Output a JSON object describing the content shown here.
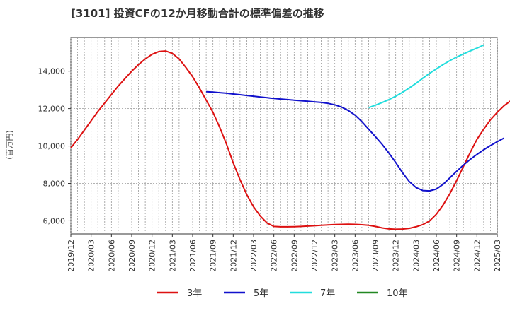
{
  "chart_data": {
    "type": "line",
    "title": "[3101]  投資CFの12か月移動合計の標準偏差の推移",
    "ylabel": "(百万円)",
    "xlabel": "",
    "ylim": [
      5300,
      15800
    ],
    "yticks": [
      6000,
      8000,
      10000,
      12000,
      14000
    ],
    "ytick_labels": [
      "6,000",
      "8,000",
      "10,000",
      "12,000",
      "14,000"
    ],
    "x_start": "2019/12",
    "x_end": "2025/03",
    "xtick_labels": [
      "2019/12",
      "2020/03",
      "2020/06",
      "2020/09",
      "2020/12",
      "2021/03",
      "2021/06",
      "2021/09",
      "2021/12",
      "2022/03",
      "2022/06",
      "2022/09",
      "2022/12",
      "2023/03",
      "2023/06",
      "2023/09",
      "2023/12",
      "2024/03",
      "2024/06",
      "2024/09",
      "2024/12",
      "2025/03"
    ],
    "grid": true,
    "legend_position": "bottom",
    "series": [
      {
        "name": "3年",
        "color": "#dd1111",
        "start": "2019/12",
        "values": [
          9900,
          10350,
          10850,
          11350,
          11850,
          12300,
          12750,
          13200,
          13600,
          14000,
          14350,
          14650,
          14900,
          15050,
          15080,
          14950,
          14650,
          14200,
          13700,
          13100,
          12450,
          11800,
          11000,
          10100,
          9100,
          8200,
          7400,
          6750,
          6250,
          5880,
          5700,
          5680,
          5680,
          5690,
          5700,
          5720,
          5740,
          5760,
          5780,
          5800,
          5810,
          5820,
          5810,
          5790,
          5760,
          5700,
          5620,
          5570,
          5550,
          5560,
          5600,
          5680,
          5800,
          5990,
          6350,
          6850,
          7450,
          8150,
          8900,
          9650,
          10350,
          10900,
          11400,
          11800,
          12150,
          12420,
          12600,
          12700
        ]
      },
      {
        "name": "5年",
        "color": "#1111cc",
        "start": "2021/08",
        "values": [
          12900,
          12880,
          12850,
          12820,
          12780,
          12740,
          12700,
          12660,
          12620,
          12580,
          12540,
          12510,
          12480,
          12450,
          12420,
          12390,
          12360,
          12330,
          12280,
          12200,
          12080,
          11900,
          11650,
          11300,
          10900,
          10500,
          10080,
          9620,
          9120,
          8580,
          8100,
          7780,
          7620,
          7600,
          7700,
          7950,
          8300,
          8650,
          8980,
          9280,
          9550,
          9800,
          10020,
          10230,
          10420
        ]
      },
      {
        "name": "7年",
        "color": "#22dddd",
        "start": "2023/08",
        "values": [
          12050,
          12180,
          12320,
          12480,
          12660,
          12870,
          13100,
          13350,
          13620,
          13880,
          14120,
          14350,
          14560,
          14750,
          14920,
          15080,
          15230,
          15400
        ]
      },
      {
        "name": "10年",
        "color": "#228822",
        "start": "2023/08",
        "values": []
      }
    ]
  }
}
